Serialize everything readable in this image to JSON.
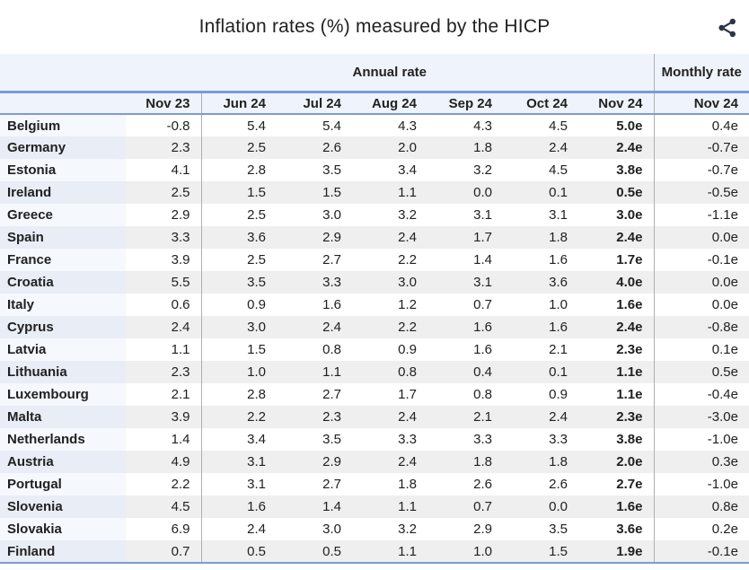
{
  "title": "Inflation rates (%) measured by the HICP",
  "icons": {
    "share": "share-icon"
  },
  "colors": {
    "accent_line": "#7b9bd8",
    "header_bg": "#eff3fc",
    "row_alt_bg": "#efefef",
    "country_col_odd_bg": "#f5f8fd",
    "country_col_even_bg": "#e9edf5",
    "grid_line": "#b0b0b0",
    "text": "#202122",
    "share_icon": "#2b3543"
  },
  "chart_data": {
    "type": "table",
    "title": "Inflation rates (%) measured by the HICP",
    "group_headers": [
      {
        "label": "Annual rate",
        "span": 7
      },
      {
        "label": "Monthly rate",
        "span": 1
      }
    ],
    "columns": [
      "Nov 23",
      "Jun 24",
      "Jul 24",
      "Aug 24",
      "Sep 24",
      "Oct 24",
      "Nov 24",
      "Nov 24"
    ],
    "rows": [
      {
        "country": "Belgium",
        "values": [
          "-0.8",
          "5.4",
          "5.4",
          "4.3",
          "4.3",
          "4.5",
          "5.0e",
          "0.4e"
        ]
      },
      {
        "country": "Germany",
        "values": [
          "2.3",
          "2.5",
          "2.6",
          "2.0",
          "1.8",
          "2.4",
          "2.4e",
          "-0.7e"
        ]
      },
      {
        "country": "Estonia",
        "values": [
          "4.1",
          "2.8",
          "3.5",
          "3.4",
          "3.2",
          "4.5",
          "3.8e",
          "-0.7e"
        ]
      },
      {
        "country": "Ireland",
        "values": [
          "2.5",
          "1.5",
          "1.5",
          "1.1",
          "0.0",
          "0.1",
          "0.5e",
          "-0.5e"
        ]
      },
      {
        "country": "Greece",
        "values": [
          "2.9",
          "2.5",
          "3.0",
          "3.2",
          "3.1",
          "3.1",
          "3.0e",
          "-1.1e"
        ]
      },
      {
        "country": "Spain",
        "values": [
          "3.3",
          "3.6",
          "2.9",
          "2.4",
          "1.7",
          "1.8",
          "2.4e",
          "0.0e"
        ]
      },
      {
        "country": "France",
        "values": [
          "3.9",
          "2.5",
          "2.7",
          "2.2",
          "1.4",
          "1.6",
          "1.7e",
          "-0.1e"
        ]
      },
      {
        "country": "Croatia",
        "values": [
          "5.5",
          "3.5",
          "3.3",
          "3.0",
          "3.1",
          "3.6",
          "4.0e",
          "0.0e"
        ]
      },
      {
        "country": "Italy",
        "values": [
          "0.6",
          "0.9",
          "1.6",
          "1.2",
          "0.7",
          "1.0",
          "1.6e",
          "0.0e"
        ]
      },
      {
        "country": "Cyprus",
        "values": [
          "2.4",
          "3.0",
          "2.4",
          "2.2",
          "1.6",
          "1.6",
          "2.4e",
          "-0.8e"
        ]
      },
      {
        "country": "Latvia",
        "values": [
          "1.1",
          "1.5",
          "0.8",
          "0.9",
          "1.6",
          "2.1",
          "2.3e",
          "0.1e"
        ]
      },
      {
        "country": "Lithuania",
        "values": [
          "2.3",
          "1.0",
          "1.1",
          "0.8",
          "0.4",
          "0.1",
          "1.1e",
          "0.5e"
        ]
      },
      {
        "country": "Luxembourg",
        "values": [
          "2.1",
          "2.8",
          "2.7",
          "1.7",
          "0.8",
          "0.9",
          "1.1e",
          "-0.4e"
        ]
      },
      {
        "country": "Malta",
        "values": [
          "3.9",
          "2.2",
          "2.3",
          "2.4",
          "2.1",
          "2.4",
          "2.3e",
          "-3.0e"
        ]
      },
      {
        "country": "Netherlands",
        "values": [
          "1.4",
          "3.4",
          "3.5",
          "3.3",
          "3.3",
          "3.3",
          "3.8e",
          "-1.0e"
        ]
      },
      {
        "country": "Austria",
        "values": [
          "4.9",
          "3.1",
          "2.9",
          "2.4",
          "1.8",
          "1.8",
          "2.0e",
          "0.3e"
        ]
      },
      {
        "country": "Portugal",
        "values": [
          "2.2",
          "3.1",
          "2.7",
          "1.8",
          "2.6",
          "2.6",
          "2.7e",
          "-1.0e"
        ]
      },
      {
        "country": "Slovenia",
        "values": [
          "4.5",
          "1.6",
          "1.4",
          "1.1",
          "0.7",
          "0.0",
          "1.6e",
          "0.8e"
        ]
      },
      {
        "country": "Slovakia",
        "values": [
          "6.9",
          "2.4",
          "3.0",
          "3.2",
          "2.9",
          "3.5",
          "3.6e",
          "0.2e"
        ]
      },
      {
        "country": "Finland",
        "values": [
          "0.7",
          "0.5",
          "0.5",
          "1.1",
          "1.0",
          "1.5",
          "1.9e",
          "-0.1e"
        ]
      }
    ]
  }
}
